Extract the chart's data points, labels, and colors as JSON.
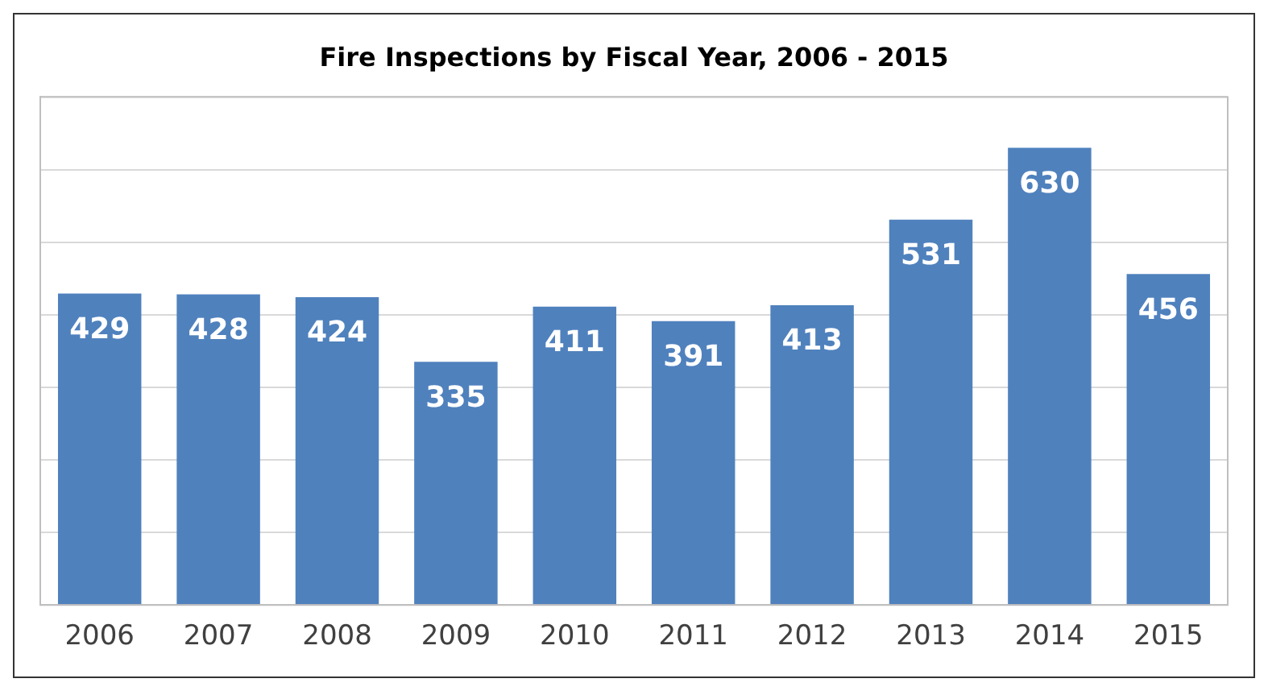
{
  "chart_data": {
    "type": "bar",
    "title": "Fire Inspections by Fiscal Year, 2006 - 2015",
    "categories": [
      "2006",
      "2007",
      "2008",
      "2009",
      "2010",
      "2011",
      "2012",
      "2013",
      "2014",
      "2015"
    ],
    "values": [
      429,
      428,
      424,
      335,
      411,
      391,
      413,
      531,
      630,
      456
    ],
    "color": "#4f81bd",
    "ylim": [
      0,
      700
    ],
    "yticks": [
      {
        "value": 0,
        "label": null
      },
      {
        "value": 100,
        "label": null
      },
      {
        "value": 200,
        "label": null
      },
      {
        "value": 300,
        "label": null
      },
      {
        "value": 400,
        "label": null
      },
      {
        "value": 500,
        "label": null
      },
      {
        "value": 600,
        "label": null
      },
      {
        "value": 700,
        "label": null
      }
    ],
    "tick_labels": "x",
    "grid": "y",
    "data_labels": true,
    "legend": false
  }
}
